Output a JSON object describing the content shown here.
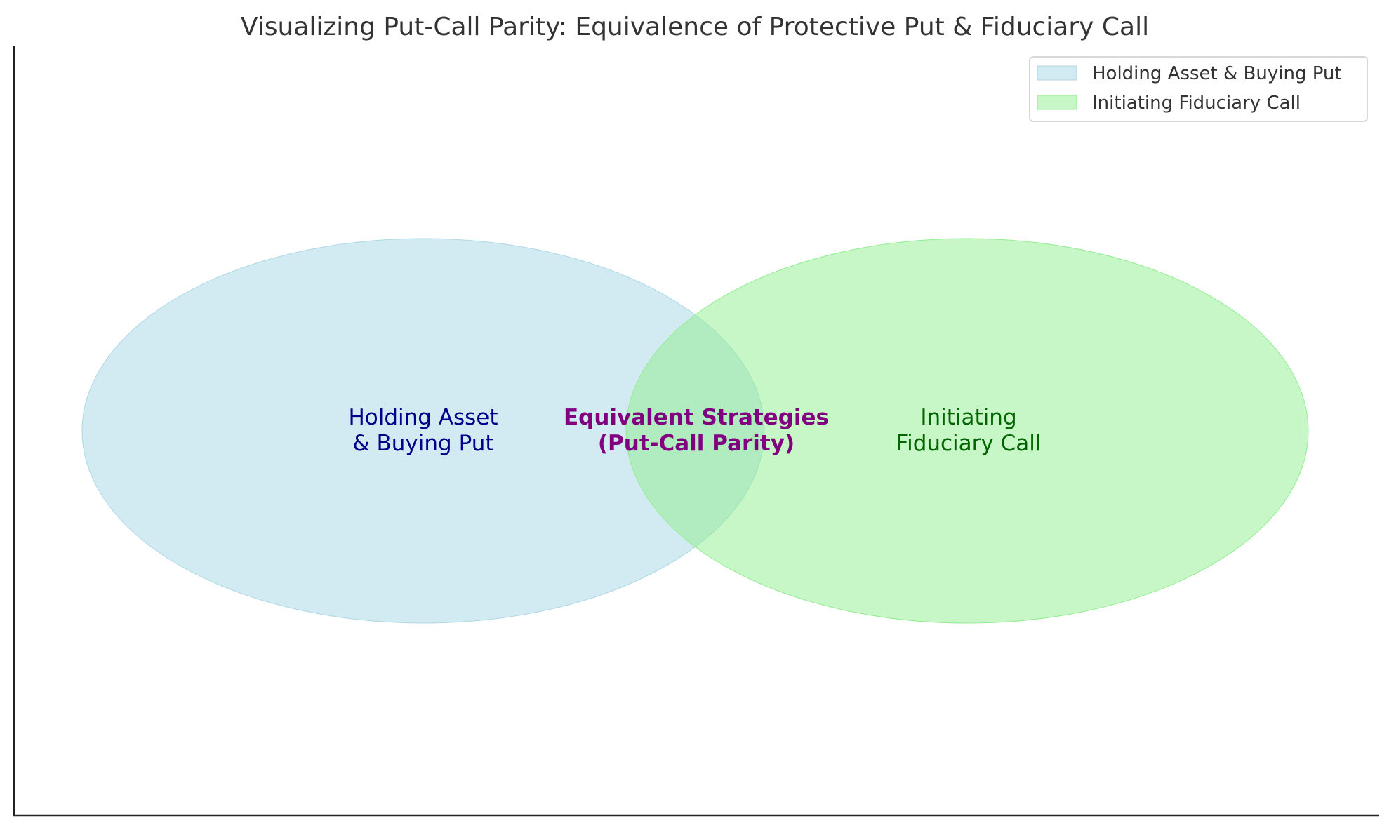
{
  "title": "Visualizing Put-Call Parity: Equivalence of Protective Put & Fiduciary Call",
  "sets": [
    {
      "key": "left",
      "label_lines": [
        "Holding Asset",
        "& Buying Put"
      ],
      "fill": "#add8e6",
      "text_color": "#00008b",
      "legend": "Holding Asset & Buying Put"
    },
    {
      "key": "right",
      "label_lines": [
        "Initiating",
        "Fiduciary Call"
      ],
      "fill": "#90ee90",
      "text_color": "#006400",
      "legend": "Initiating Fiduciary Call"
    }
  ],
  "intersection": {
    "label_lines": [
      "Equivalent Strategies",
      "(Put-Call Parity)"
    ],
    "text_color": "#800080"
  }
}
